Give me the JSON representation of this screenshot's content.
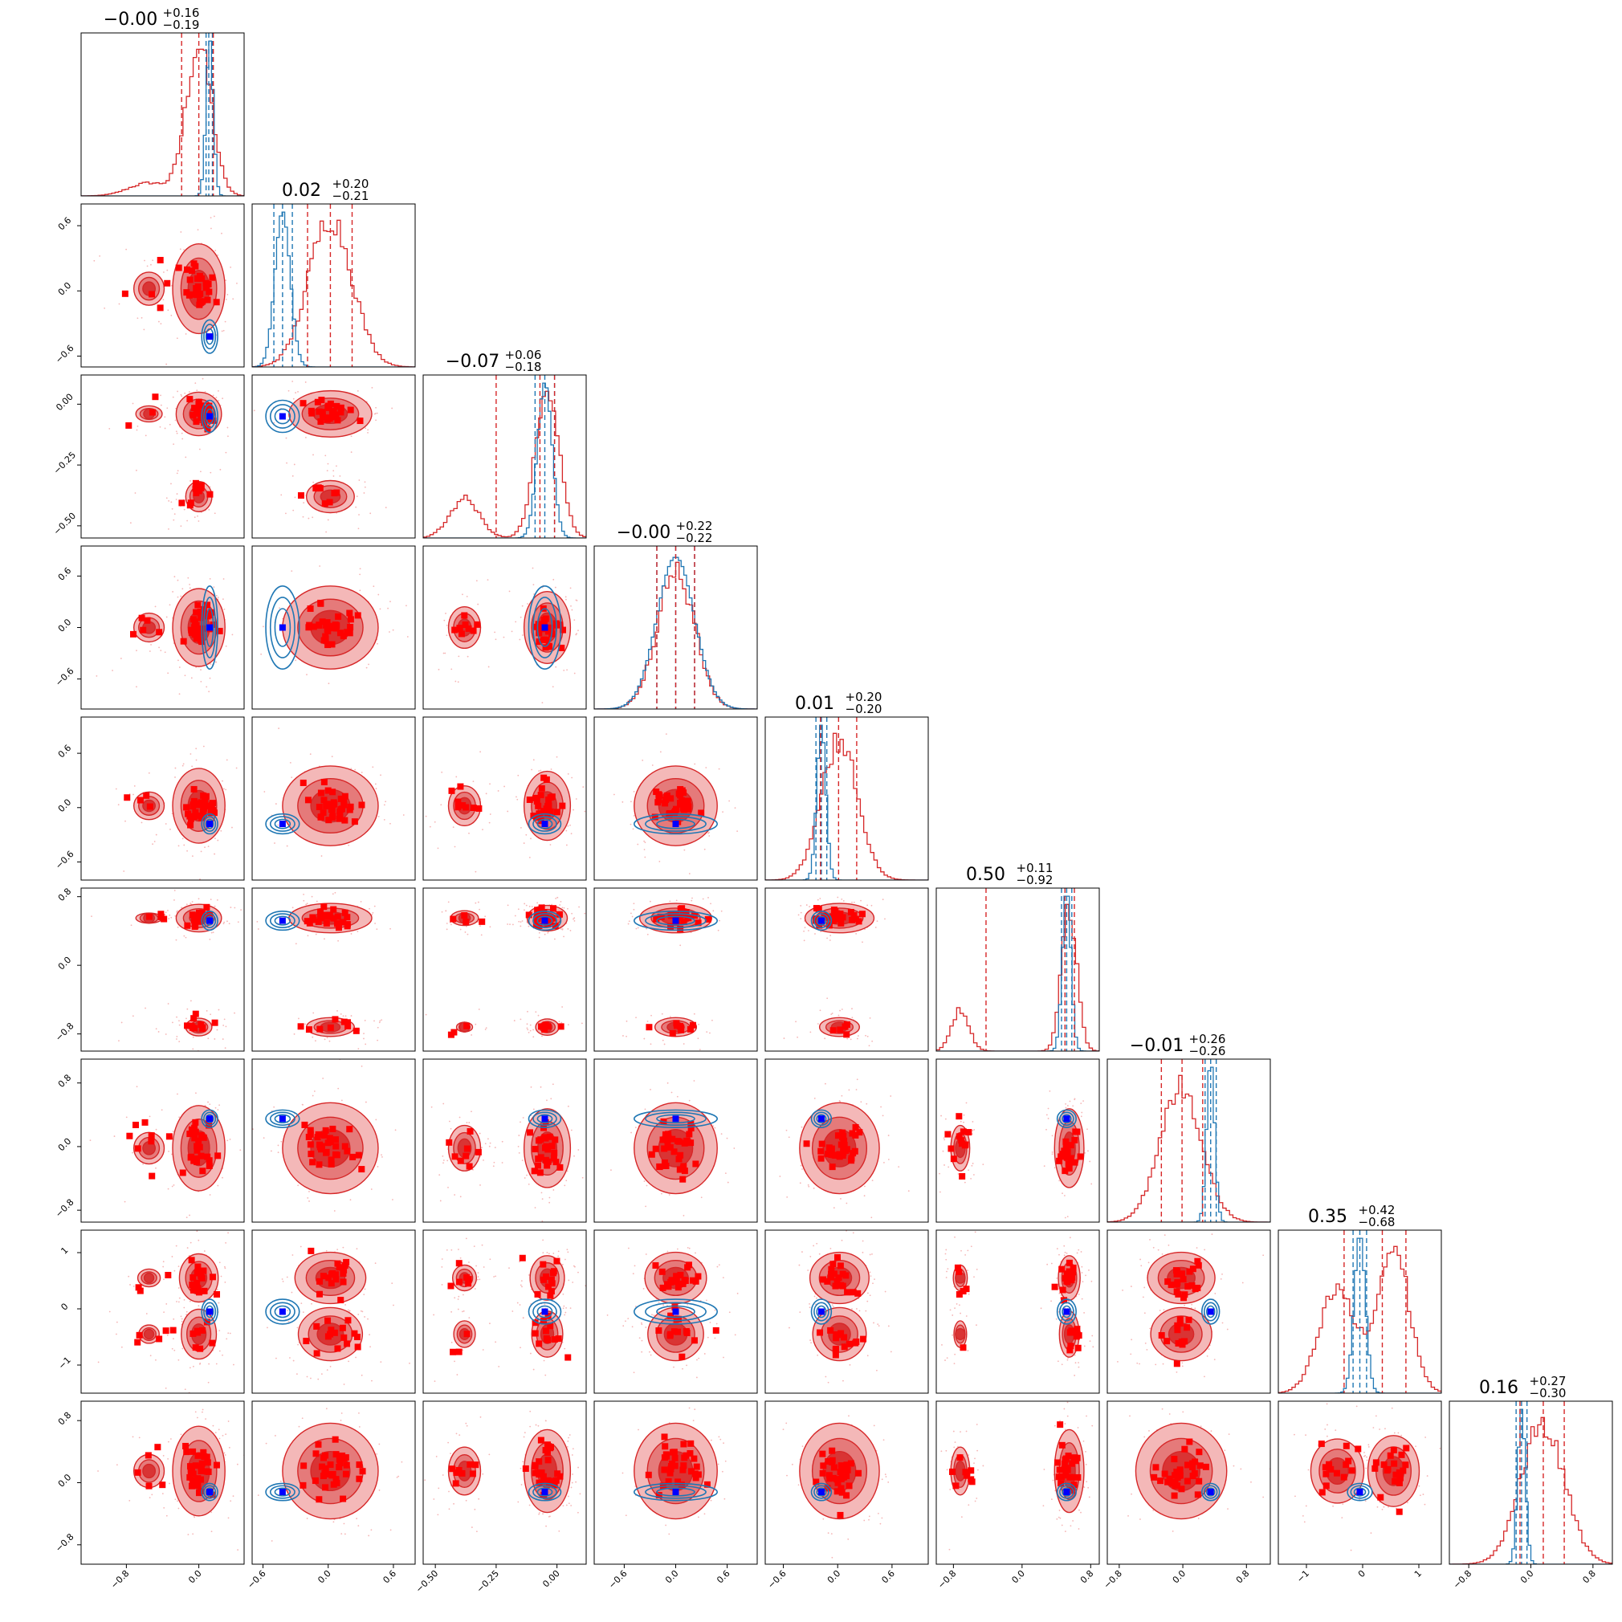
{
  "chart_data": {
    "type": "corner",
    "dimensions": 9,
    "colors": {
      "posterior_red": "#d62728",
      "fill_light": "#f4b8b8",
      "fill_mid": "#e57a7a",
      "fill_dark": "#d93434",
      "samples_red": "#ff0000",
      "comparison_blue": "#1f77b4",
      "truth_blue": "#0000ff"
    },
    "titles": [
      {
        "median": "−0.00",
        "plus": "+0.16",
        "minus": "−0.19"
      },
      {
        "median": "0.02",
        "plus": "+0.20",
        "minus": "−0.21"
      },
      {
        "median": "−0.07",
        "plus": "+0.06",
        "minus": "−0.18"
      },
      {
        "median": "−0.00",
        "plus": "+0.22",
        "minus": "−0.22"
      },
      {
        "median": "0.01",
        "plus": "+0.20",
        "minus": "−0.20"
      },
      {
        "median": "0.50",
        "plus": "+0.11",
        "minus": "−0.92"
      },
      {
        "median": "−0.01",
        "plus": "+0.26",
        "minus": "−0.26"
      },
      {
        "median": "0.35",
        "plus": "+0.42",
        "minus": "−0.68"
      },
      {
        "median": "0.16",
        "plus": "+0.27",
        "minus": "−0.30"
      }
    ],
    "axis_ranges": [
      [
        -1.3,
        0.5
      ],
      [
        -0.7,
        0.8
      ],
      [
        -0.55,
        0.12
      ],
      [
        -0.95,
        0.95
      ],
      [
        -0.8,
        1.0
      ],
      [
        -1.0,
        0.9
      ],
      [
        -0.95,
        1.1
      ],
      [
        -1.5,
        1.4
      ],
      [
        -1.05,
        1.05
      ]
    ],
    "ticks": [
      {
        "values": [
          -0.8,
          0.0
        ],
        "labels": [
          "−0.8",
          "0.0"
        ]
      },
      {
        "values": [
          -0.6,
          0.0,
          0.6
        ],
        "labels": [
          "−0.6",
          "0.0",
          "0.6"
        ]
      },
      {
        "values": [
          -0.5,
          -0.25,
          0.0
        ],
        "labels": [
          "−0.50",
          "−0.25",
          "0.00"
        ]
      },
      {
        "values": [
          -0.6,
          0.0,
          0.6
        ],
        "labels": [
          "−0.6",
          "0.0",
          "0.6"
        ]
      },
      {
        "values": [
          -0.6,
          0.0,
          0.6
        ],
        "labels": [
          "−0.6",
          "0.0",
          "0.6"
        ]
      },
      {
        "values": [
          -0.8,
          0.0,
          0.8
        ],
        "labels": [
          "−0.8",
          "0.0",
          "0.8"
        ]
      },
      {
        "values": [
          -0.8,
          0.0,
          0.8
        ],
        "labels": [
          "−0.8",
          "0.0",
          "0.8"
        ]
      },
      {
        "values": [
          -1,
          0,
          1
        ],
        "labels": [
          "−1",
          "0",
          "1"
        ]
      },
      {
        "values": [
          -0.8,
          0.0,
          0.8
        ],
        "labels": [
          "−0.8",
          "0.0",
          "0.8"
        ]
      }
    ],
    "red_modes": [
      [
        {
          "c": 0.0,
          "s": 0.14,
          "w": 0.88
        },
        {
          "c": -0.55,
          "s": 0.22,
          "w": 0.12
        }
      ],
      [
        {
          "c": 0.02,
          "s": 0.2,
          "w": 1.0
        }
      ],
      [
        {
          "c": -0.04,
          "s": 0.05,
          "w": 0.75
        },
        {
          "c": -0.38,
          "s": 0.06,
          "w": 0.25
        }
      ],
      [
        {
          "c": 0.0,
          "s": 0.22,
          "w": 1.0
        }
      ],
      [
        {
          "c": 0.02,
          "s": 0.2,
          "w": 1.0
        }
      ],
      [
        {
          "c": 0.55,
          "s": 0.09,
          "w": 0.75
        },
        {
          "c": -0.72,
          "s": 0.1,
          "w": 0.25
        }
      ],
      [
        {
          "c": -0.02,
          "s": 0.26,
          "w": 1.0
        }
      ],
      [
        {
          "c": 0.55,
          "s": 0.28,
          "w": 0.55
        },
        {
          "c": -0.45,
          "s": 0.32,
          "w": 0.45
        }
      ],
      [
        {
          "c": 0.15,
          "s": 0.28,
          "w": 1.0
        }
      ]
    ],
    "red_quantiles": [
      [
        -0.19,
        0.0,
        0.16
      ],
      [
        -0.19,
        0.02,
        0.22
      ],
      [
        -0.25,
        -0.07,
        -0.01
      ],
      [
        -0.22,
        0.0,
        0.22
      ],
      [
        -0.19,
        0.01,
        0.21
      ],
      [
        -0.42,
        0.5,
        0.61
      ],
      [
        -0.27,
        -0.01,
        0.25
      ],
      [
        -0.33,
        0.35,
        0.77
      ],
      [
        -0.14,
        0.16,
        0.43
      ]
    ],
    "blue_true": [
      0.12,
      -0.42,
      -0.05,
      0.0,
      -0.18,
      0.52,
      0.35,
      -0.05,
      -0.12
    ],
    "blue_sigma": [
      0.04,
      0.07,
      0.03,
      0.22,
      0.05,
      0.05,
      0.05,
      0.1,
      0.05
    ],
    "blue_quantiles": [
      [
        0.08,
        0.11,
        0.15
      ],
      [
        -0.5,
        -0.42,
        -0.33
      ],
      [
        -0.09,
        -0.05,
        -0.01
      ],
      [
        -0.22,
        0.0,
        0.22
      ],
      [
        -0.24,
        -0.18,
        -0.12
      ],
      [
        0.46,
        0.52,
        0.58
      ],
      [
        0.28,
        0.35,
        0.42
      ],
      [
        -0.17,
        -0.05,
        0.07
      ],
      [
        -0.19,
        -0.12,
        -0.05
      ]
    ]
  }
}
